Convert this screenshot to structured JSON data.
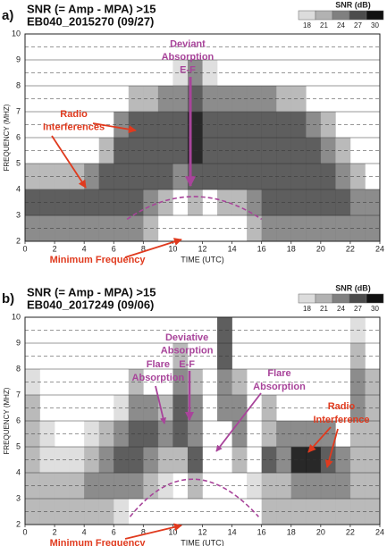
{
  "chart_data": [
    {
      "type": "heatmap",
      "panel_label": "a)",
      "title": [
        "SNR (= Amp - MPA) >15",
        "EB040_2015270 (09/27)"
      ],
      "xlabel": "TIME (UTC)",
      "ylabel": "FREQUENCY (MHZ)",
      "xlim": [
        0,
        24
      ],
      "xticks": [
        0,
        2,
        4,
        6,
        8,
        10,
        12,
        14,
        16,
        18,
        20,
        22,
        24
      ],
      "ylim": [
        2,
        10
      ],
      "yticks": [
        2,
        3,
        4,
        5,
        6,
        7,
        8,
        9,
        10
      ],
      "y_minor_grid": [
        2.5,
        3.5,
        4.5,
        5.5,
        6.5,
        7.5,
        8.5,
        9.5
      ],
      "colorbar": {
        "title": "SNR (dB)",
        "ticks": [
          18,
          21,
          24,
          27,
          30
        ],
        "colors": [
          "#dcdcdc",
          "#b2b2b2",
          "#808080",
          "#4c4c4c",
          "#111111"
        ]
      },
      "z": [
        [
          24,
          24,
          24,
          24,
          24,
          24,
          24,
          24,
          21,
          null,
          null,
          null,
          null,
          null,
          null,
          21,
          24,
          24,
          24,
          24,
          24,
          24,
          24,
          24
        ],
        [
          27,
          27,
          27,
          27,
          27,
          27,
          27,
          27,
          24,
          21,
          null,
          21,
          null,
          21,
          21,
          24,
          27,
          27,
          27,
          27,
          27,
          27,
          24,
          24
        ],
        [
          21,
          21,
          21,
          21,
          24,
          27,
          27,
          27,
          27,
          27,
          24,
          27,
          27,
          27,
          27,
          27,
          27,
          27,
          27,
          27,
          27,
          24,
          21,
          null
        ],
        [
          null,
          null,
          null,
          null,
          null,
          21,
          27,
          27,
          27,
          27,
          27,
          30,
          27,
          27,
          27,
          27,
          27,
          27,
          27,
          27,
          24,
          21,
          null,
          null
        ],
        [
          null,
          null,
          null,
          null,
          null,
          null,
          24,
          27,
          27,
          27,
          27,
          30,
          27,
          27,
          27,
          27,
          27,
          27,
          27,
          24,
          21,
          null,
          null,
          null
        ],
        [
          null,
          null,
          null,
          null,
          null,
          null,
          null,
          21,
          21,
          24,
          24,
          27,
          24,
          24,
          24,
          24,
          24,
          21,
          21,
          null,
          null,
          null,
          null,
          null
        ],
        [
          null,
          null,
          null,
          null,
          null,
          null,
          null,
          null,
          null,
          null,
          18,
          24,
          18,
          null,
          null,
          null,
          null,
          null,
          null,
          null,
          null,
          null,
          null,
          null
        ],
        [
          null,
          null,
          null,
          null,
          null,
          null,
          null,
          null,
          null,
          null,
          null,
          null,
          null,
          null,
          null,
          null,
          null,
          null,
          null,
          null,
          null,
          null,
          null,
          null
        ]
      ],
      "annotations": [
        {
          "lines": [
            "Deviant",
            "Absorption",
            "E-F"
          ],
          "color": "#a8449a"
        },
        {
          "lines": [
            "Radio",
            "Interferences"
          ],
          "color": "#e03a1e"
        },
        {
          "lines": [
            "Minimum  Frequency"
          ],
          "color": "#e03a1e"
        }
      ]
    },
    {
      "type": "heatmap",
      "panel_label": "b)",
      "title": [
        "SNR (= Amp - MPA) >15",
        "EB040_2017249 (09/06)"
      ],
      "xlabel": "TIME (UTC)",
      "ylabel": "FREQUENCY (MHZ)",
      "xlim": [
        0,
        24
      ],
      "xticks": [
        0,
        2,
        4,
        6,
        8,
        10,
        12,
        14,
        16,
        18,
        20,
        22,
        24
      ],
      "ylim": [
        2,
        10
      ],
      "yticks": [
        2,
        3,
        4,
        5,
        6,
        7,
        8,
        9,
        10
      ],
      "y_minor_grid": [
        2.5,
        3.5,
        4.5,
        5.5,
        6.5,
        7.5,
        8.5,
        9.5
      ],
      "colorbar": {
        "title": "SNR (dB)",
        "ticks": [
          18,
          21,
          24,
          27,
          30
        ],
        "colors": [
          "#dcdcdc",
          "#b2b2b2",
          "#808080",
          "#4c4c4c",
          "#111111"
        ]
      },
      "z": [
        [
          21,
          21,
          21,
          21,
          21,
          21,
          18,
          null,
          null,
          null,
          null,
          null,
          null,
          null,
          null,
          null,
          21,
          21,
          21,
          21,
          21,
          21,
          21,
          21
        ],
        [
          21,
          21,
          21,
          21,
          24,
          24,
          24,
          24,
          21,
          18,
          null,
          21,
          null,
          null,
          null,
          18,
          21,
          21,
          24,
          24,
          24,
          24,
          21,
          21
        ],
        [
          21,
          18,
          18,
          18,
          21,
          24,
          27,
          27,
          24,
          21,
          21,
          27,
          null,
          null,
          21,
          null,
          27,
          24,
          30,
          30,
          27,
          24,
          21,
          21
        ],
        [
          21,
          18,
          null,
          null,
          18,
          21,
          24,
          27,
          27,
          24,
          27,
          24,
          null,
          null,
          24,
          null,
          21,
          24,
          24,
          24,
          24,
          null,
          21,
          21
        ],
        [
          21,
          null,
          null,
          null,
          null,
          null,
          18,
          24,
          24,
          21,
          27,
          24,
          null,
          24,
          24,
          null,
          21,
          null,
          null,
          null,
          null,
          null,
          24,
          21
        ],
        [
          18,
          null,
          null,
          null,
          null,
          null,
          null,
          21,
          null,
          null,
          24,
          21,
          null,
          24,
          21,
          null,
          null,
          null,
          null,
          null,
          null,
          null,
          24,
          21
        ],
        [
          null,
          null,
          null,
          null,
          null,
          null,
          null,
          null,
          null,
          null,
          21,
          null,
          null,
          27,
          null,
          null,
          null,
          null,
          null,
          null,
          null,
          null,
          21,
          null
        ],
        [
          null,
          null,
          null,
          null,
          null,
          null,
          null,
          null,
          null,
          null,
          null,
          null,
          null,
          27,
          null,
          null,
          null,
          null,
          null,
          null,
          null,
          null,
          18,
          null
        ]
      ],
      "annotations": [
        {
          "lines": [
            "Flare",
            "Absorption"
          ],
          "color": "#a8449a"
        },
        {
          "lines": [
            "Deviative",
            "Absorption",
            "E-F"
          ],
          "color": "#a8449a"
        },
        {
          "lines": [
            "Flare",
            "Absorption"
          ],
          "color": "#a8449a"
        },
        {
          "lines": [
            "Radio",
            "Interference"
          ],
          "color": "#e03a1e"
        },
        {
          "lines": [
            "Minimum  Frequency"
          ],
          "color": "#e03a1e"
        }
      ]
    }
  ]
}
